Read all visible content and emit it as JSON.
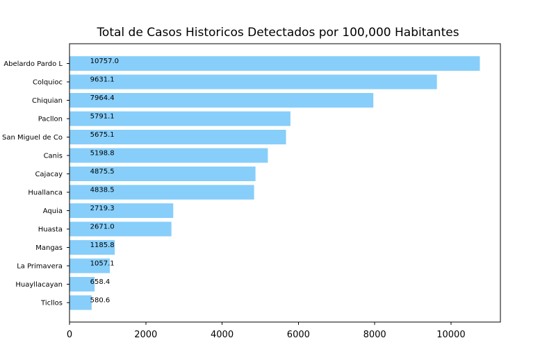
{
  "chart_data": {
    "type": "bar",
    "orientation": "horizontal",
    "title": "Total de Casos Historicos Detectados por 100,000 Habitantes",
    "xlabel": "",
    "ylabel": "",
    "categories": [
      "Abelardo Pardo L",
      "Colquioc",
      "Chiquian",
      "Pacllon",
      "San Miguel de Co",
      "Canis",
      "Cajacay",
      "Huallanca",
      "Aquia",
      "Huasta",
      "Mangas",
      "La Primavera",
      "Huayllacayan",
      "Ticllos"
    ],
    "values": [
      10757.0,
      9631.1,
      7964.4,
      5791.1,
      5675.1,
      5198.8,
      4875.5,
      4838.5,
      2719.3,
      2671.0,
      1185.8,
      1057.1,
      658.4,
      580.6
    ],
    "data_labels": [
      "10757.0",
      "9631.1",
      "7964.4",
      "5791.1",
      "5675.1",
      "5198.8",
      "4875.5",
      "4838.5",
      "2719.3",
      "2671.0",
      "1185.8",
      "1057.1",
      "658.4",
      "580.6"
    ],
    "xlim": [
      0,
      11295
    ],
    "x_ticks": [
      0,
      2000,
      4000,
      6000,
      8000,
      10000
    ],
    "x_tick_labels": [
      "0",
      "2000",
      "4000",
      "6000",
      "8000",
      "10000"
    ],
    "label_anchor_value": 540,
    "bar_color": "#87CEFA",
    "grid": false,
    "legend": "none"
  }
}
